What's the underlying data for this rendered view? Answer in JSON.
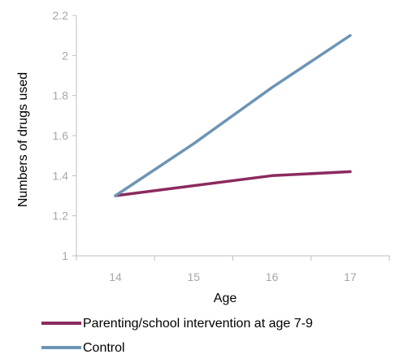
{
  "chart_data": {
    "type": "line",
    "title": "",
    "xlabel": "Age",
    "ylabel": "Numbers of drugs used",
    "x": [
      14,
      15,
      16,
      17
    ],
    "x_tick_labels": [
      "14",
      "15",
      "16",
      "17"
    ],
    "ylim": [
      1,
      2.2
    ],
    "y_ticks": [
      1,
      1.2,
      1.4,
      1.6,
      1.8,
      2,
      2.2
    ],
    "y_tick_labels": [
      "1",
      "1.2",
      "1.4",
      "1.6",
      "1.8",
      "2",
      "2.2"
    ],
    "grid": false,
    "legend_position": "bottom",
    "series": [
      {
        "name": "Parenting/school intervention at age 7-9",
        "x": [
          14,
          16,
          17
        ],
        "values": [
          1.3,
          1.4,
          1.42
        ],
        "color": "#8b2a5e"
      },
      {
        "name": "Control",
        "x": [
          14,
          15,
          16,
          17
        ],
        "values": [
          1.3,
          1.56,
          1.84,
          2.1
        ],
        "color": "#6d94b5"
      }
    ],
    "axis_color": "#bfbfbf",
    "tick_label_color": "#a6a6a6"
  }
}
